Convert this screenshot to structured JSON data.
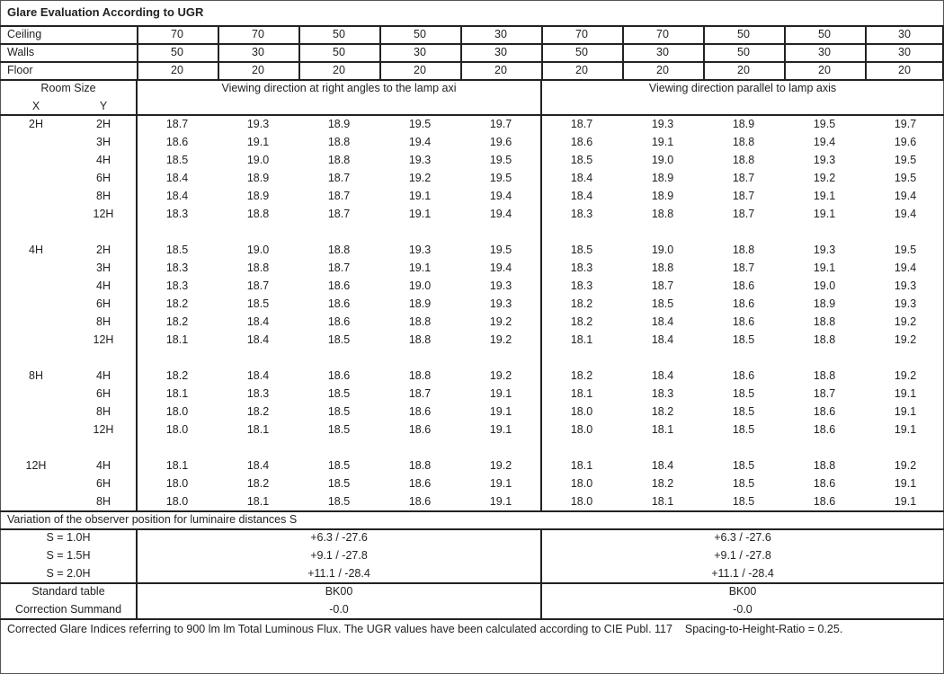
{
  "title": "Glare Evaluation According to UGR",
  "reflectances": [
    {
      "label": "Ceiling",
      "values": [
        "70",
        "70",
        "50",
        "50",
        "30",
        "70",
        "70",
        "50",
        "50",
        "30"
      ]
    },
    {
      "label": "Walls",
      "values": [
        "50",
        "30",
        "50",
        "30",
        "30",
        "50",
        "30",
        "50",
        "30",
        "30"
      ]
    },
    {
      "label": "Floor",
      "values": [
        "20",
        "20",
        "20",
        "20",
        "20",
        "20",
        "20",
        "20",
        "20",
        "20"
      ]
    }
  ],
  "header": {
    "room_size": "Room Size",
    "x": "X",
    "y": "Y",
    "right_angles": "Viewing direction at right angles to the lamp axi",
    "parallel": "Viewing direction parallel to lamp axis"
  },
  "groups": [
    {
      "x": "2H",
      "rows": [
        {
          "y": "2H",
          "values": [
            "18.7",
            "19.3",
            "18.9",
            "19.5",
            "19.7",
            "18.7",
            "19.3",
            "18.9",
            "19.5",
            "19.7"
          ]
        },
        {
          "y": "3H",
          "values": [
            "18.6",
            "19.1",
            "18.8",
            "19.4",
            "19.6",
            "18.6",
            "19.1",
            "18.8",
            "19.4",
            "19.6"
          ]
        },
        {
          "y": "4H",
          "values": [
            "18.5",
            "19.0",
            "18.8",
            "19.3",
            "19.5",
            "18.5",
            "19.0",
            "18.8",
            "19.3",
            "19.5"
          ]
        },
        {
          "y": "6H",
          "values": [
            "18.4",
            "18.9",
            "18.7",
            "19.2",
            "19.5",
            "18.4",
            "18.9",
            "18.7",
            "19.2",
            "19.5"
          ]
        },
        {
          "y": "8H",
          "values": [
            "18.4",
            "18.9",
            "18.7",
            "19.1",
            "19.4",
            "18.4",
            "18.9",
            "18.7",
            "19.1",
            "19.4"
          ]
        },
        {
          "y": "12H",
          "values": [
            "18.3",
            "18.8",
            "18.7",
            "19.1",
            "19.4",
            "18.3",
            "18.8",
            "18.7",
            "19.1",
            "19.4"
          ]
        }
      ]
    },
    {
      "x": "4H",
      "rows": [
        {
          "y": "2H",
          "values": [
            "18.5",
            "19.0",
            "18.8",
            "19.3",
            "19.5",
            "18.5",
            "19.0",
            "18.8",
            "19.3",
            "19.5"
          ]
        },
        {
          "y": "3H",
          "values": [
            "18.3",
            "18.8",
            "18.7",
            "19.1",
            "19.4",
            "18.3",
            "18.8",
            "18.7",
            "19.1",
            "19.4"
          ]
        },
        {
          "y": "4H",
          "values": [
            "18.3",
            "18.7",
            "18.6",
            "19.0",
            "19.3",
            "18.3",
            "18.7",
            "18.6",
            "19.0",
            "19.3"
          ]
        },
        {
          "y": "6H",
          "values": [
            "18.2",
            "18.5",
            "18.6",
            "18.9",
            "19.3",
            "18.2",
            "18.5",
            "18.6",
            "18.9",
            "19.3"
          ]
        },
        {
          "y": "8H",
          "values": [
            "18.2",
            "18.4",
            "18.6",
            "18.8",
            "19.2",
            "18.2",
            "18.4",
            "18.6",
            "18.8",
            "19.2"
          ]
        },
        {
          "y": "12H",
          "values": [
            "18.1",
            "18.4",
            "18.5",
            "18.8",
            "19.2",
            "18.1",
            "18.4",
            "18.5",
            "18.8",
            "19.2"
          ]
        }
      ]
    },
    {
      "x": "8H",
      "rows": [
        {
          "y": "4H",
          "values": [
            "18.2",
            "18.4",
            "18.6",
            "18.8",
            "19.2",
            "18.2",
            "18.4",
            "18.6",
            "18.8",
            "19.2"
          ]
        },
        {
          "y": "6H",
          "values": [
            "18.1",
            "18.3",
            "18.5",
            "18.7",
            "19.1",
            "18.1",
            "18.3",
            "18.5",
            "18.7",
            "19.1"
          ]
        },
        {
          "y": "8H",
          "values": [
            "18.0",
            "18.2",
            "18.5",
            "18.6",
            "19.1",
            "18.0",
            "18.2",
            "18.5",
            "18.6",
            "19.1"
          ]
        },
        {
          "y": "12H",
          "values": [
            "18.0",
            "18.1",
            "18.5",
            "18.6",
            "19.1",
            "18.0",
            "18.1",
            "18.5",
            "18.6",
            "19.1"
          ]
        }
      ]
    },
    {
      "x": "12H",
      "rows": [
        {
          "y": "4H",
          "values": [
            "18.1",
            "18.4",
            "18.5",
            "18.8",
            "19.2",
            "18.1",
            "18.4",
            "18.5",
            "18.8",
            "19.2"
          ]
        },
        {
          "y": "6H",
          "values": [
            "18.0",
            "18.2",
            "18.5",
            "18.6",
            "19.1",
            "18.0",
            "18.2",
            "18.5",
            "18.6",
            "19.1"
          ]
        },
        {
          "y": "8H",
          "values": [
            "18.0",
            "18.1",
            "18.5",
            "18.6",
            "19.1",
            "18.0",
            "18.1",
            "18.5",
            "18.6",
            "19.1"
          ]
        }
      ]
    }
  ],
  "variation": {
    "title": "Variation of the observer position for luminaire distances S",
    "rows": [
      {
        "label": "S = 1.0H",
        "left": "+6.3 / -27.6",
        "right": "+6.3 / -27.6"
      },
      {
        "label": "S = 1.5H",
        "left": "+9.1 / -27.8",
        "right": "+9.1 / -27.8"
      },
      {
        "label": "S = 2.0H",
        "left": "+11.1 / -28.4",
        "right": "+11.1 / -28.4"
      }
    ]
  },
  "standard": [
    {
      "label": "Standard table",
      "left": "BK00",
      "right": "BK00"
    },
    {
      "label": "Correction Summand",
      "left": "-0.0",
      "right": "-0.0"
    }
  ],
  "footnote": "Corrected Glare Indices referring to 900 lm lm Total Luminous Flux. The UGR values have been calculated according to CIE Publ. 117    Spacing-to-Height-Ratio = 0.25."
}
